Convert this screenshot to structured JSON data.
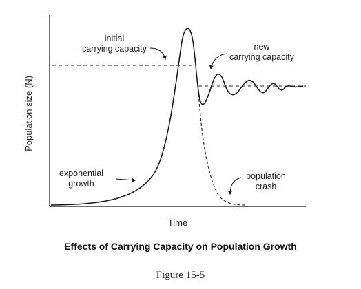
{
  "figure": {
    "caption": "Effects of Carrying Capacity on Population Growth",
    "figure_number": "Figure 15-5"
  },
  "axes": {
    "x_label": "Time",
    "y_label": "Population size (N)"
  },
  "annotations": {
    "initial_capacity": [
      "initial",
      "carrying capacity"
    ],
    "new_capacity": [
      "new",
      "carrying capacity"
    ],
    "exponential": [
      "exponential",
      "growth"
    ],
    "crash": [
      "population",
      "crash"
    ]
  }
}
